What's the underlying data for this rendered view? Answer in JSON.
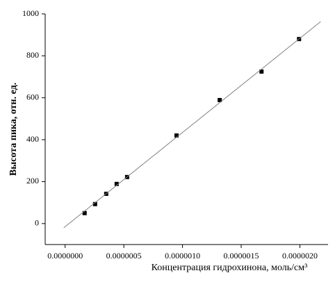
{
  "chart_data": {
    "type": "scatter",
    "xlabel": "Концентрация гидрохинона, моль/см³",
    "ylabel": "Высота пика, отн. ед.",
    "xlim": [
      -1.7e-07,
      2.24e-06
    ],
    "ylim": [
      -100,
      1000
    ],
    "xticks": [
      {
        "value": 0,
        "label": "0.0000000"
      },
      {
        "value": 5e-07,
        "label": "0.0000005"
      },
      {
        "value": 1e-06,
        "label": "0.0000010"
      },
      {
        "value": 1.5e-06,
        "label": "0.0000015"
      },
      {
        "value": 2e-06,
        "label": "0.0000020"
      }
    ],
    "yticks": [
      0,
      200,
      400,
      600,
      800,
      1000
    ],
    "grid": false,
    "series": [
      {
        "style": "markers",
        "color": "#000000",
        "x": [
          1.66e-07,
          2.55e-07,
          3.5e-07,
          4.39e-07,
          5.28e-07,
          9.49e-07,
          1.317e-06,
          1.673e-06,
          1.993e-06
        ],
        "values": [
          50,
          93,
          142,
          189,
          222,
          420,
          589,
          725,
          880
        ]
      },
      {
        "style": "line",
        "color": "#808080",
        "x": [
          -1.2e-08,
          2.177e-06
        ],
        "values": [
          -20,
          963
        ]
      }
    ]
  }
}
